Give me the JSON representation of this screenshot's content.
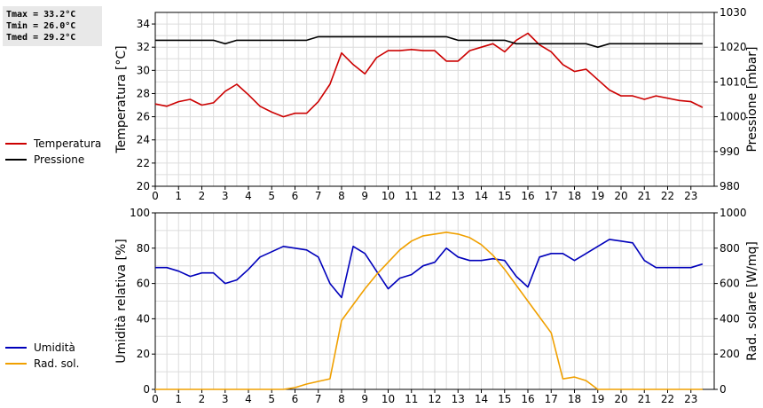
{
  "stats": {
    "tmax": "Tmax = 33.2°C",
    "tmin": "Tmin = 26.0°C",
    "tmed": "Tmed = 29.2°C"
  },
  "legend_top": [
    {
      "label": "Temperatura",
      "color": "#cc0000"
    },
    {
      "label": "Pressione",
      "color": "#000000"
    }
  ],
  "legend_bottom": [
    {
      "label": "Umidità",
      "color": "#0000bb"
    },
    {
      "label": "Rad. sol.",
      "color": "#f0a000"
    }
  ],
  "chart_data": [
    {
      "type": "line",
      "title": "",
      "xlabel": "",
      "xlim": [
        0,
        24
      ],
      "xticks": [
        0,
        1,
        2,
        3,
        4,
        5,
        6,
        7,
        8,
        9,
        10,
        11,
        12,
        13,
        14,
        15,
        16,
        17,
        18,
        19,
        20,
        21,
        22,
        23
      ],
      "ylabel": "Temperatura [°C]",
      "ylim": [
        20,
        35
      ],
      "yticks": [
        20,
        22,
        24,
        26,
        28,
        30,
        32,
        34
      ],
      "y2label": "Pressione [mbar]",
      "y2lim": [
        980,
        1030
      ],
      "y2ticks": [
        980,
        990,
        1000,
        1010,
        1020,
        1030
      ],
      "grid": true,
      "series": [
        {
          "name": "Temperatura",
          "color": "#cc0000",
          "axis": "left",
          "x": [
            0,
            0.5,
            1,
            1.5,
            2,
            2.5,
            3,
            3.5,
            4,
            4.5,
            5,
            5.5,
            6,
            6.5,
            7,
            7.5,
            8,
            8.5,
            9,
            9.5,
            10,
            10.5,
            11,
            11.5,
            12,
            12.5,
            13,
            13.5,
            14,
            14.5,
            15,
            15.5,
            16,
            16.5,
            17,
            17.5,
            18,
            18.5,
            19,
            19.5,
            20,
            20.5,
            21,
            21.5,
            22,
            22.5,
            23,
            23.5
          ],
          "values": [
            27.1,
            26.9,
            27.3,
            27.5,
            27.0,
            27.2,
            28.2,
            28.8,
            27.9,
            26.9,
            26.4,
            26.0,
            26.3,
            26.3,
            27.3,
            28.8,
            31.5,
            30.5,
            29.7,
            31.1,
            31.7,
            31.7,
            31.8,
            31.7,
            31.7,
            30.8,
            30.8,
            31.7,
            32.0,
            32.3,
            31.6,
            32.6,
            33.2,
            32.2,
            31.6,
            30.5,
            29.9,
            30.1,
            29.2,
            28.3,
            27.8,
            27.8,
            27.5,
            27.8,
            27.6,
            27.4,
            27.3,
            26.8
          ]
        },
        {
          "name": "Pressione",
          "color": "#000000",
          "axis": "right",
          "x": [
            0,
            0.5,
            1,
            1.5,
            2,
            2.5,
            3,
            3.5,
            4,
            4.5,
            5,
            5.5,
            6,
            6.5,
            7,
            7.5,
            8,
            8.5,
            9,
            9.5,
            10,
            10.5,
            11,
            11.5,
            12,
            12.5,
            13,
            13.5,
            14,
            14.5,
            15,
            15.5,
            16,
            16.5,
            17,
            17.5,
            18,
            18.5,
            19,
            19.5,
            20,
            20.5,
            21,
            21.5,
            22,
            22.5,
            23,
            23.5
          ],
          "values": [
            1022,
            1022,
            1022,
            1022,
            1022,
            1022,
            1021,
            1022,
            1022,
            1022,
            1022,
            1022,
            1022,
            1022,
            1023,
            1023,
            1023,
            1023,
            1023,
            1023,
            1023,
            1023,
            1023,
            1023,
            1023,
            1023,
            1022,
            1022,
            1022,
            1022,
            1022,
            1021,
            1021,
            1021,
            1021,
            1021,
            1021,
            1021,
            1020,
            1021,
            1021,
            1021,
            1021,
            1021,
            1021,
            1021,
            1021,
            1021
          ]
        }
      ]
    },
    {
      "type": "line",
      "title": "",
      "xlabel": "",
      "xlim": [
        0,
        24
      ],
      "xticks": [
        0,
        1,
        2,
        3,
        4,
        5,
        6,
        7,
        8,
        9,
        10,
        11,
        12,
        13,
        14,
        15,
        16,
        17,
        18,
        19,
        20,
        21,
        22,
        23
      ],
      "ylabel": "Umidità relativa [%]",
      "ylim": [
        0,
        100
      ],
      "yticks": [
        0,
        20,
        40,
        60,
        80,
        100
      ],
      "y2label": "Rad. solare [W/mq]",
      "y2lim": [
        0,
        1000
      ],
      "y2ticks": [
        0,
        200,
        400,
        600,
        800,
        1000
      ],
      "grid": true,
      "series": [
        {
          "name": "Umidità",
          "color": "#0000bb",
          "axis": "left",
          "x": [
            0,
            0.5,
            1,
            1.5,
            2,
            2.5,
            3,
            3.5,
            4,
            4.5,
            5,
            5.5,
            6,
            6.5,
            7,
            7.5,
            8,
            8.5,
            9,
            9.5,
            10,
            10.5,
            11,
            11.5,
            12,
            12.5,
            13,
            13.5,
            14,
            14.5,
            15,
            15.5,
            16,
            16.5,
            17,
            17.5,
            18,
            18.5,
            19,
            19.5,
            20,
            20.5,
            21,
            21.5,
            22,
            22.5,
            23,
            23.5
          ],
          "values": [
            69,
            69,
            67,
            64,
            66,
            66,
            60,
            62,
            68,
            75,
            78,
            81,
            80,
            79,
            75,
            60,
            52,
            81,
            77,
            67,
            57,
            63,
            65,
            70,
            72,
            80,
            75,
            73,
            73,
            74,
            73,
            64,
            58,
            75,
            77,
            77,
            73,
            77,
            81,
            85,
            84,
            83,
            73,
            69,
            69,
            69,
            69,
            71
          ]
        },
        {
          "name": "Rad. sol.",
          "color": "#f0a000",
          "axis": "right",
          "x": [
            0,
            0.5,
            1,
            1.5,
            2,
            2.5,
            3,
            3.5,
            4,
            4.5,
            5,
            5.5,
            6,
            6.5,
            7,
            7.5,
            8,
            8.5,
            9,
            9.5,
            10,
            10.5,
            11,
            11.5,
            12,
            12.5,
            13,
            13.5,
            14,
            14.5,
            15,
            15.5,
            16,
            16.5,
            17,
            17.5,
            18,
            18.5,
            19,
            19.5,
            20,
            20.5,
            21,
            21.5,
            22,
            22.5,
            23,
            23.5
          ],
          "values": [
            0,
            0,
            0,
            0,
            0,
            0,
            0,
            0,
            0,
            0,
            0,
            0,
            10,
            30,
            45,
            60,
            390,
            480,
            570,
            650,
            720,
            790,
            840,
            870,
            880,
            890,
            880,
            860,
            820,
            760,
            680,
            590,
            500,
            410,
            320,
            60,
            70,
            50,
            0,
            0,
            0,
            0,
            0,
            0,
            0,
            0,
            0,
            0
          ]
        }
      ]
    }
  ]
}
